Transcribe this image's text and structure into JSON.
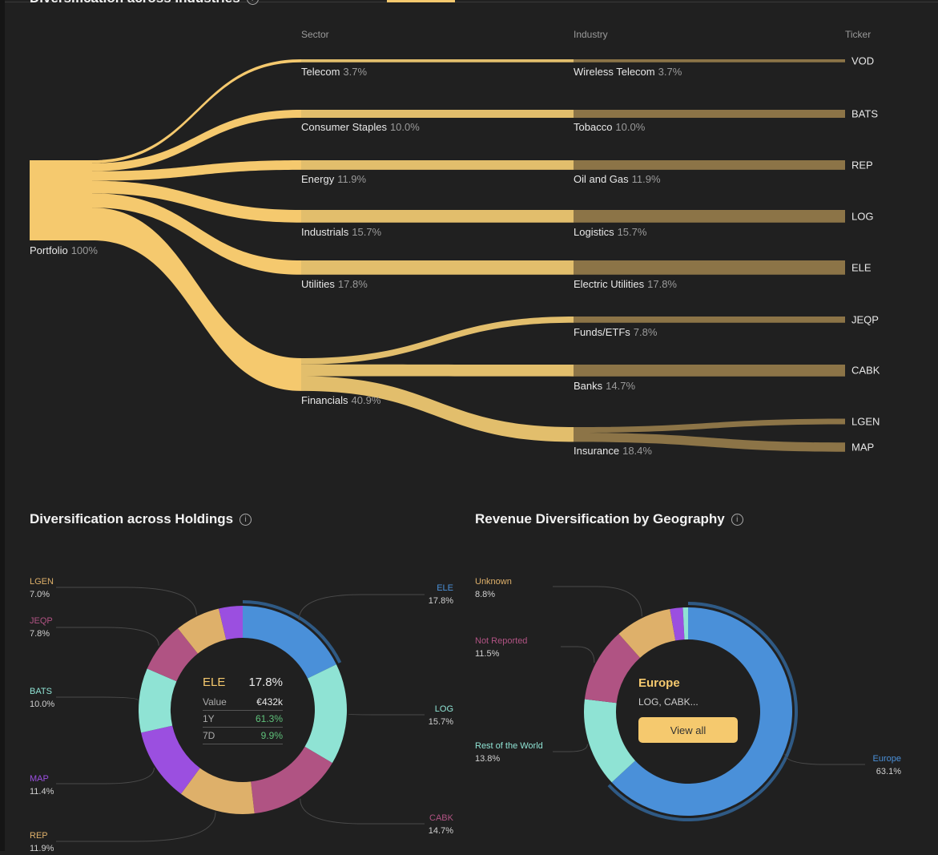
{
  "industries": {
    "title": "Diversification across Industries",
    "columns": [
      "Sector",
      "Industry",
      "Ticker"
    ],
    "root": {
      "label": "Portfolio",
      "pct": "100%"
    },
    "sectors": [
      {
        "label": "Telecom",
        "value": 3.7,
        "pct": "3.7%"
      },
      {
        "label": "Consumer Staples",
        "value": 10.0,
        "pct": "10.0%"
      },
      {
        "label": "Energy",
        "value": 11.9,
        "pct": "11.9%"
      },
      {
        "label": "Industrials",
        "value": 15.7,
        "pct": "15.7%"
      },
      {
        "label": "Utilities",
        "value": 17.8,
        "pct": "17.8%"
      },
      {
        "label": "Financials",
        "value": 40.9,
        "pct": "40.9%"
      }
    ],
    "industries": [
      {
        "label": "Wireless Telecom",
        "sector": 0,
        "value": 3.7,
        "pct": "3.7%"
      },
      {
        "label": "Tobacco",
        "sector": 1,
        "value": 10.0,
        "pct": "10.0%"
      },
      {
        "label": "Oil and Gas",
        "sector": 2,
        "value": 11.9,
        "pct": "11.9%"
      },
      {
        "label": "Logistics",
        "sector": 3,
        "value": 15.7,
        "pct": "15.7%"
      },
      {
        "label": "Electric Utilities",
        "sector": 4,
        "value": 17.8,
        "pct": "17.8%"
      },
      {
        "label": "Funds/ETFs",
        "sector": 5,
        "value": 7.8,
        "pct": "7.8%"
      },
      {
        "label": "Banks",
        "sector": 5,
        "value": 14.7,
        "pct": "14.7%"
      },
      {
        "label": "Insurance",
        "sector": 5,
        "value": 18.4,
        "pct": "18.4%"
      }
    ],
    "tickers": [
      {
        "label": "VOD",
        "industry": 0,
        "value": 3.7
      },
      {
        "label": "BATS",
        "industry": 1,
        "value": 10.0
      },
      {
        "label": "REP",
        "industry": 2,
        "value": 11.9
      },
      {
        "label": "LOG",
        "industry": 3,
        "value": 15.7
      },
      {
        "label": "ELE",
        "industry": 4,
        "value": 17.8
      },
      {
        "label": "JEQP",
        "industry": 5,
        "value": 7.8
      },
      {
        "label": "CABK",
        "industry": 6,
        "value": 14.7
      },
      {
        "label": "LGEN",
        "industry": 7,
        "value": 7.0
      },
      {
        "label": "MAP",
        "industry": 7,
        "value": 11.4
      }
    ],
    "colors": {
      "root": "#f5c96e",
      "sector_link": "#e2be6c",
      "industry_link": "#8c7447"
    }
  },
  "holdings": {
    "title": "Diversification across Holdings",
    "slices": [
      {
        "label": "ELE",
        "value": 17.8,
        "pct": "17.8%",
        "color": "#4a90d9"
      },
      {
        "label": "LOG",
        "value": 15.7,
        "pct": "15.7%",
        "color": "#8fe3d4"
      },
      {
        "label": "CABK",
        "value": 14.7,
        "pct": "14.7%",
        "color": "#b05383"
      },
      {
        "label": "REP",
        "value": 11.9,
        "pct": "11.9%",
        "color": "#deb06a"
      },
      {
        "label": "MAP",
        "value": 11.4,
        "pct": "11.4%",
        "color": "#9b4fe0"
      },
      {
        "label": "BATS",
        "value": 10.0,
        "pct": "10.0%",
        "color": "#8fe3d4"
      },
      {
        "label": "JEQP",
        "value": 7.8,
        "pct": "7.8%",
        "color": "#b05383"
      },
      {
        "label": "LGEN",
        "value": 7.0,
        "pct": "7.0%",
        "color": "#deb06a"
      },
      {
        "label": "",
        "value": 3.7,
        "pct": "",
        "color": "#9b4fe0"
      }
    ],
    "selected": {
      "ticker": "ELE",
      "pct": "17.8%",
      "value_label": "Value",
      "value": "€432k",
      "y1_label": "1Y",
      "y1": "61.3%",
      "d7_label": "7D",
      "d7": "9.9%"
    },
    "positive_color": "#5fc07a"
  },
  "geography": {
    "title": "Revenue Diversification by Geography",
    "slices": [
      {
        "label": "Europe",
        "value": 63.1,
        "pct": "63.1%",
        "color": "#4a90d9"
      },
      {
        "label": "Rest of the World",
        "value": 13.8,
        "pct": "13.8%",
        "color": "#8fe3d4"
      },
      {
        "label": "Not Reported",
        "value": 11.5,
        "pct": "11.5%",
        "color": "#b05383"
      },
      {
        "label": "Unknown",
        "value": 8.8,
        "pct": "8.8%",
        "color": "#deb06a"
      },
      {
        "label": "",
        "value": 2.0,
        "pct": "",
        "color": "#9b4fe0"
      },
      {
        "label": "",
        "value": 0.8,
        "pct": "",
        "color": "#8fe3d4"
      }
    ],
    "selected": {
      "region": "Europe",
      "tickers": "LOG, CABK...",
      "button": "View all"
    }
  }
}
